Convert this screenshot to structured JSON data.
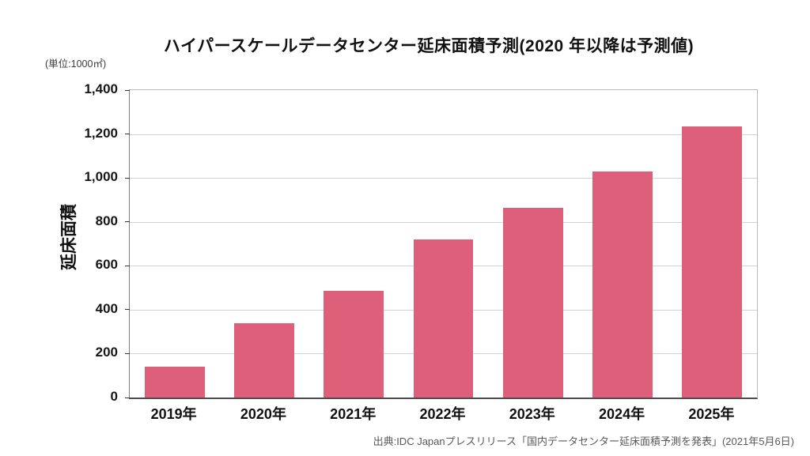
{
  "title": "ハイパースケールデータセンター延床面積予測(2020 年以降は予測値)",
  "unit_label": "(単位:1000㎡)",
  "source": "出典:IDC Japanプレスリリース「国内データセンター延床面積予測を発表」(2021年5月6日)",
  "colors": {
    "bar": "#de5f7a",
    "gridline": "#d2d2d2",
    "axis": "#4d4d4d",
    "text": "#111111",
    "source_text": "#585858"
  },
  "chart_data": {
    "type": "bar",
    "title": "ハイパースケールデータセンター延床面積予測(2020 年以降は予測値)",
    "unit": "1000㎡",
    "categories": [
      "2019年",
      "2020年",
      "2021年",
      "2022年",
      "2023年",
      "2024年",
      "2025年"
    ],
    "values": [
      140,
      340,
      485,
      720,
      865,
      1030,
      1235
    ],
    "xlabel": "",
    "ylabel": "延床面積",
    "ylim": [
      0,
      1400
    ],
    "ytick_step": 200,
    "ytick_labels": [
      "0",
      "200",
      "400",
      "600",
      "800",
      "1,000",
      "1,200",
      "1,400"
    ],
    "grid": true,
    "legend": false,
    "bar_color": "#de5f7a",
    "bar_width_fraction": 0.67
  }
}
